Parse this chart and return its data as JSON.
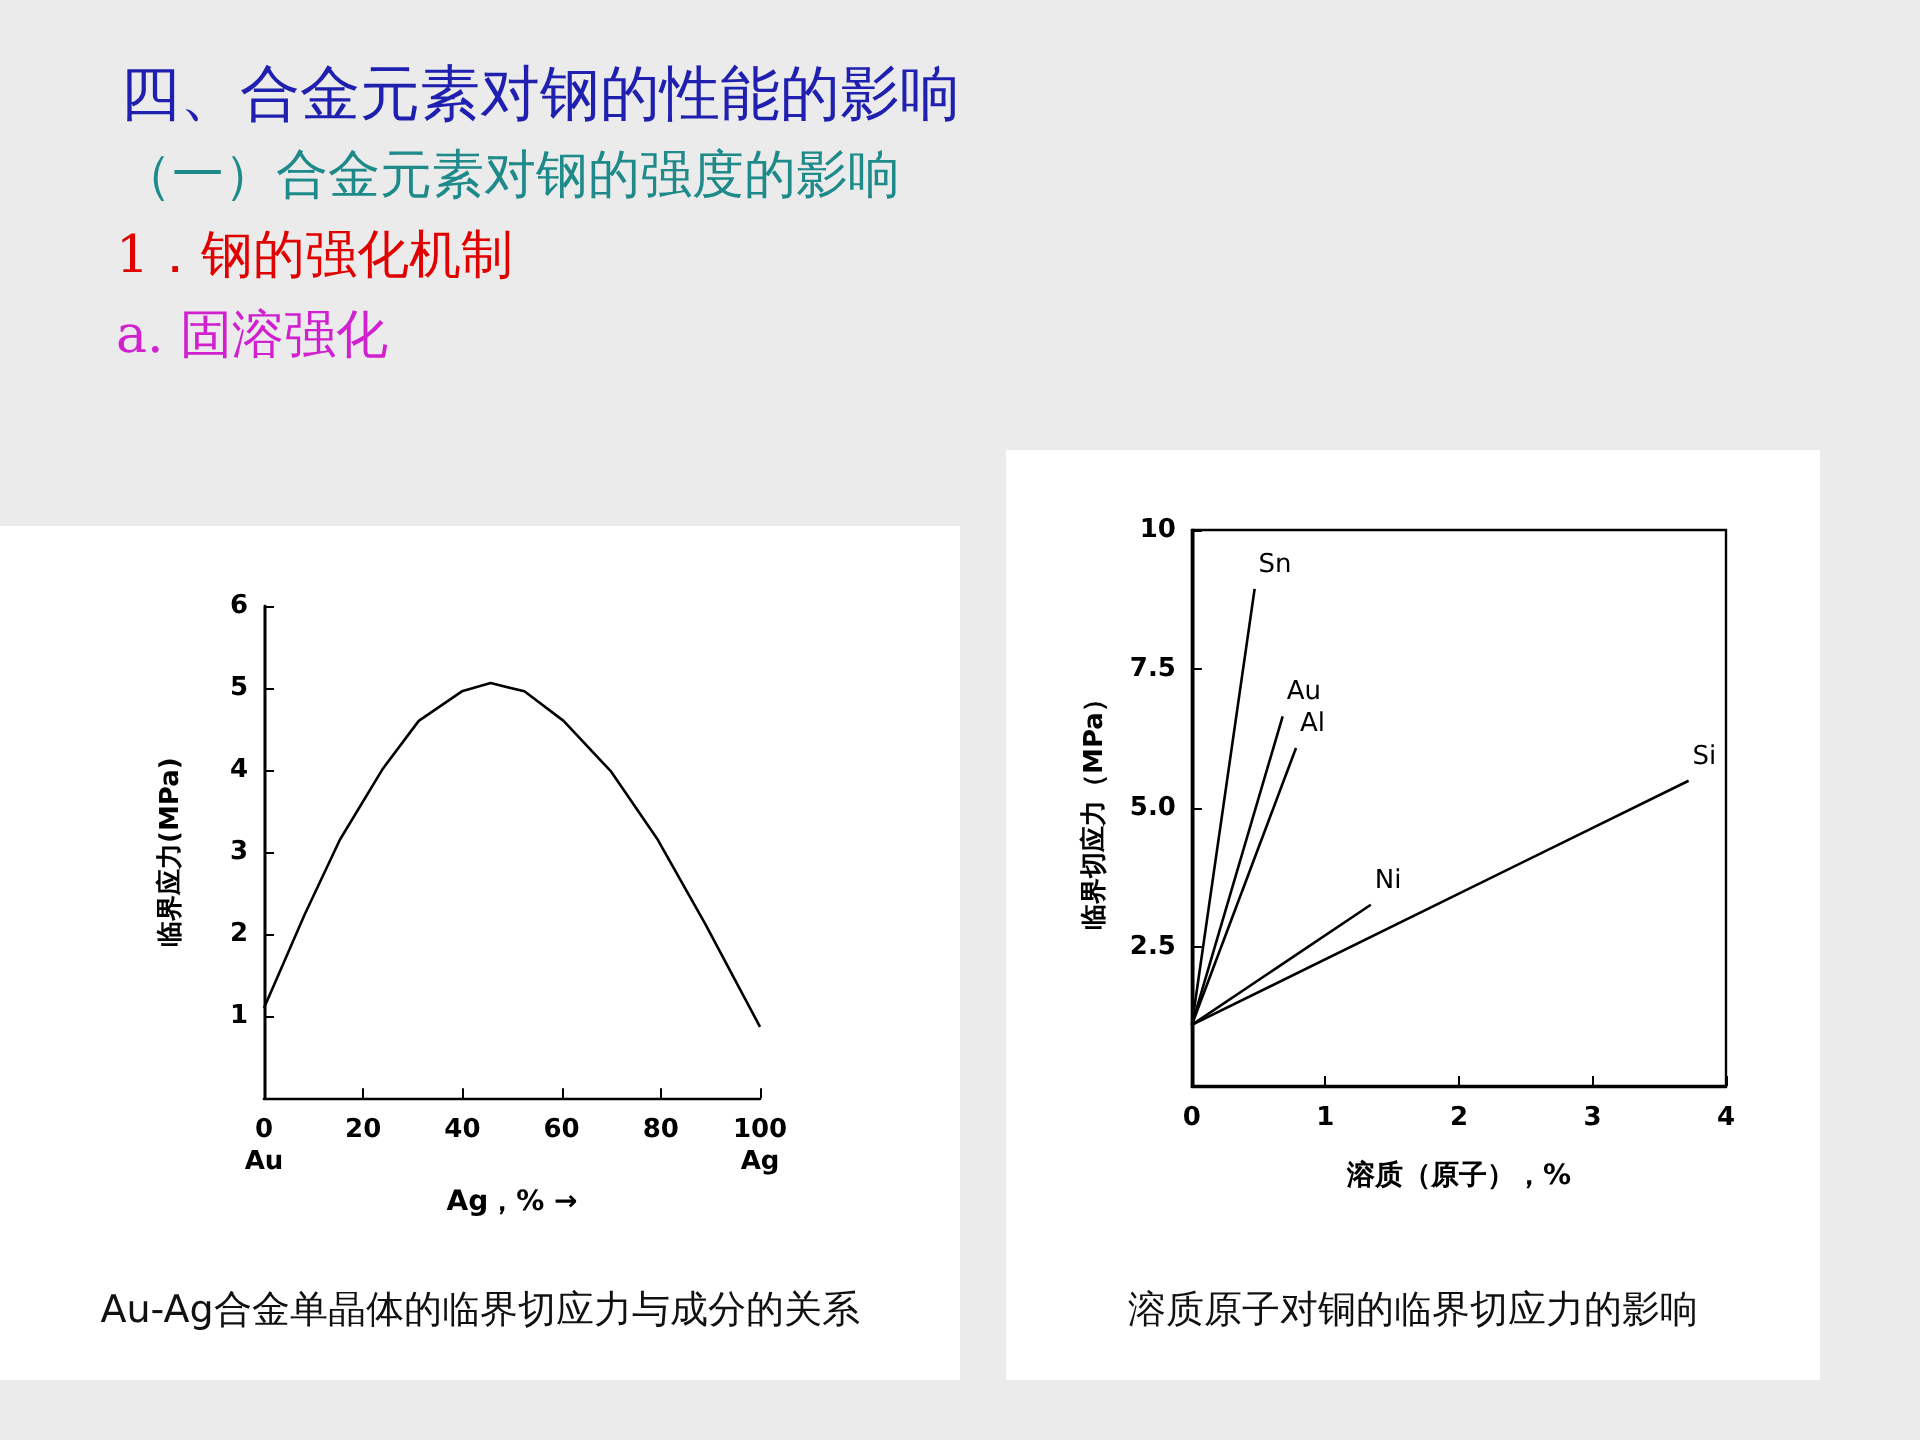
{
  "chart_data": [
    {
      "type": "line",
      "title": "四、合金元素对钢的性能的影响",
      "subtitle": "（一）合金元素对钢的强度的影响",
      "annotations": [
        "1．钢的强化机制",
        "a. 固溶强化",
        "Au-Ag合金单晶体的临界切应力与成分的关系"
      ],
      "xlabel": "Ag，% →",
      "ylabel": "临界应力(MPa)",
      "x": [
        0,
        8.2,
        15.3,
        24,
        31.2,
        39.9,
        45.7,
        52.5,
        60.4,
        70,
        79.4,
        88.9,
        100
      ],
      "series": [
        {
          "color": "#000000",
          "values": [
            1.1,
            2.24,
            3.15,
            4.02,
            4.6,
            4.96,
            5.06,
            4.96,
            4.6,
            3.98,
            3.15,
            2.13,
            0.87
          ]
        }
      ],
      "xlim": [
        0,
        100
      ],
      "xticks": [
        {
          "value": 0,
          "label": "0\nAu"
        },
        20,
        40,
        60,
        80,
        {
          "value": 100,
          "label": "100\nAg"
        }
      ],
      "ylim": [
        0,
        6
      ],
      "yticks": [
        1,
        2,
        3,
        4,
        5,
        6
      ],
      "grid": false,
      "legend": false,
      "marker": "none",
      "line_style": "solid"
    },
    {
      "type": "line",
      "annotations": [
        "溶质原子对铜的临界切应力的影响"
      ],
      "xlabel": "溶质（原子），%",
      "ylabel": "临界切应力（MPa）",
      "series": [
        {
          "name": "Sn",
          "color": "#000000",
          "x": [
            0,
            0.47
          ],
          "values": [
            1.1,
            8.94
          ]
        },
        {
          "name": "Au",
          "color": "#000000",
          "x": [
            0,
            0.68
          ],
          "values": [
            1.1,
            6.65
          ]
        },
        {
          "name": "Al",
          "color": "#000000",
          "x": [
            0,
            0.78
          ],
          "values": [
            1.1,
            6.08
          ]
        },
        {
          "name": "Ni",
          "color": "#000000",
          "x": [
            0,
            1.34
          ],
          "values": [
            1.1,
            3.26
          ]
        },
        {
          "name": "Si",
          "color": "#000000",
          "x": [
            0,
            3.72
          ],
          "values": [
            1.1,
            5.49
          ]
        }
      ],
      "xlim": [
        0,
        4
      ],
      "xticks": [
        0,
        1,
        2,
        3,
        4
      ],
      "ylim": [
        0,
        10
      ],
      "yticks": [
        {
          "value": 2.5,
          "label": "2.5"
        },
        {
          "value": 5,
          "label": "5.0"
        },
        {
          "value": 7.5,
          "label": "7.5"
        },
        10
      ],
      "grid": false,
      "legend": false,
      "marker": "none",
      "line_style": "solid"
    }
  ]
}
